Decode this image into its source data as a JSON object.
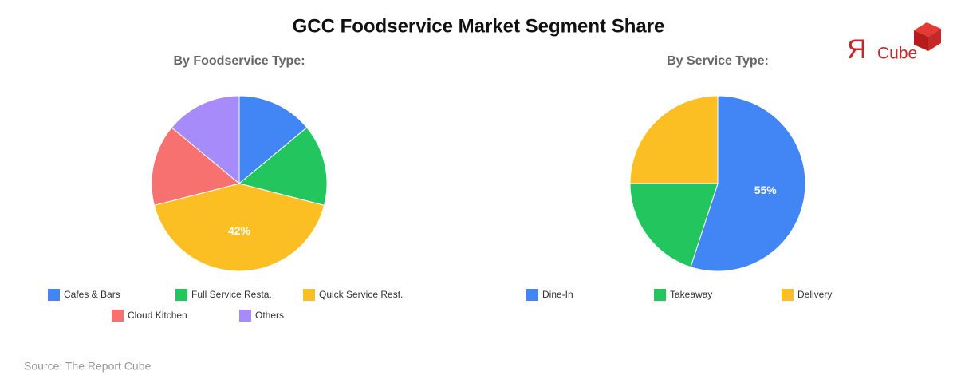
{
  "title": "GCC Foodservice Market Segment Share",
  "source": "Source: The Report Cube",
  "logo": {
    "mark": "Я",
    "text": "Cube"
  },
  "chart_data": [
    {
      "type": "pie",
      "title": "By Foodservice Type:",
      "categories": [
        "Cafes & Bars",
        "Full Service Resta.",
        "Quick Service Rest.",
        "Cloud Kitchen",
        "Others"
      ],
      "values": [
        14,
        15,
        42,
        15,
        14
      ],
      "value_labels": [
        null,
        null,
        "42%",
        null,
        null
      ],
      "colors": [
        "#4285f4",
        "#22c55e",
        "#fbbf24",
        "#f87171",
        "#a78bfa"
      ]
    },
    {
      "type": "pie",
      "title": "By Service Type:",
      "categories": [
        "Dine-In",
        "Takeaway",
        "Delivery"
      ],
      "values": [
        55,
        20,
        25
      ],
      "value_labels": [
        "55%",
        null,
        null
      ],
      "colors": [
        "#4285f4",
        "#22c55e",
        "#fbbf24"
      ]
    }
  ]
}
